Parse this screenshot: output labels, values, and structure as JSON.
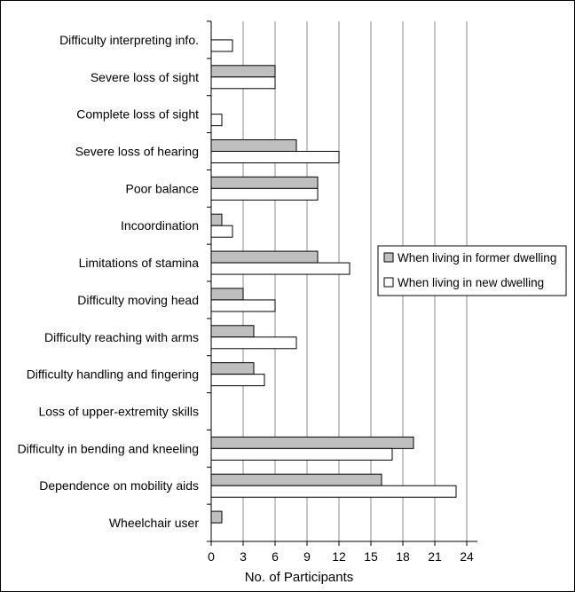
{
  "chart_data": {
    "type": "bar",
    "orientation": "horizontal",
    "categories": [
      "Difficulty interpreting info.",
      "Severe loss of sight",
      "Complete loss of sight",
      "Severe loss of hearing",
      "Poor balance",
      "Incoordination",
      "Limitations of stamina",
      "Difficulty moving head",
      "Difficulty reaching with arms",
      "Difficulty handling and fingering",
      "Loss of upper-extremity skills",
      "Difficulty in bending and kneeling",
      "Dependence on mobility aids",
      "Wheelchair user"
    ],
    "series": [
      {
        "name": "When living in former dwelling",
        "color": "#bfbfbf",
        "values": [
          0,
          6,
          0,
          8,
          10,
          1,
          10,
          3,
          4,
          4,
          0,
          19,
          16,
          1
        ]
      },
      {
        "name": "When living in new dwelling",
        "color": "#ffffff",
        "values": [
          2,
          6,
          1,
          12,
          10,
          2,
          13,
          6,
          8,
          5,
          0,
          17,
          23,
          0
        ]
      }
    ],
    "xlabel": "No. of Participants",
    "ylabel": "",
    "xlim": [
      0,
      24
    ],
    "xticks": [
      0,
      3,
      6,
      9,
      12,
      15,
      18,
      21,
      24
    ],
    "grid": "vertical",
    "legend_position": "right"
  }
}
